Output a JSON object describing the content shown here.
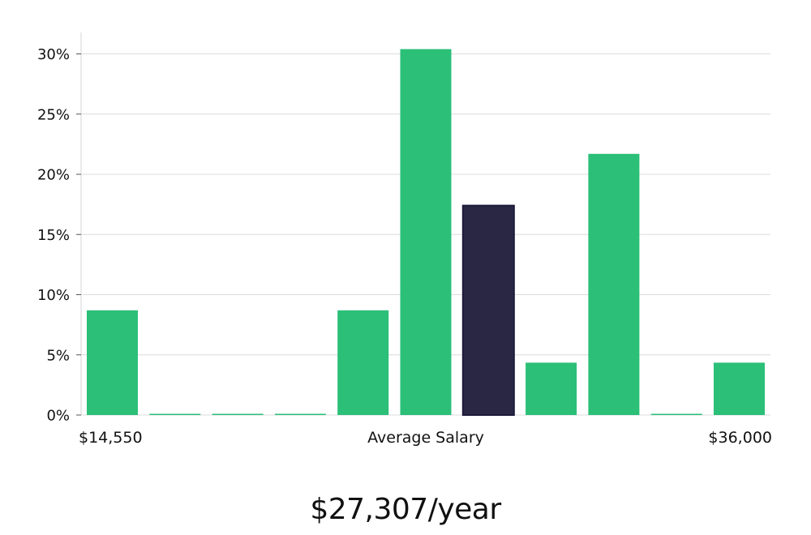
{
  "chart_data": {
    "type": "bar",
    "title": "",
    "xlabel": "Average Salary",
    "ylabel": "",
    "categories": [
      "1",
      "2",
      "3",
      "4",
      "5",
      "6",
      "7",
      "8",
      "9",
      "10",
      "11"
    ],
    "values": [
      8.7,
      0,
      0,
      0,
      8.7,
      30.4,
      17.4,
      4.35,
      21.7,
      0,
      4.35
    ],
    "highlight_index": 6,
    "ylim": [
      0,
      32
    ],
    "yticks": [
      "0%",
      "5%",
      "10%",
      "15%",
      "20%",
      "25%",
      "30%"
    ],
    "ytick_values": [
      0,
      5,
      10,
      15,
      20,
      25,
      30
    ],
    "grid": true,
    "x_min_label": "$14,550",
    "x_mid_label": "Average Salary",
    "x_max_label": "$36,000",
    "colors": {
      "bar": "#2bbf78",
      "highlight": "#2a2745",
      "grid": "#dcdcdc",
      "axis": "#d6d6d6"
    }
  },
  "salary_text": "$27,307/year"
}
